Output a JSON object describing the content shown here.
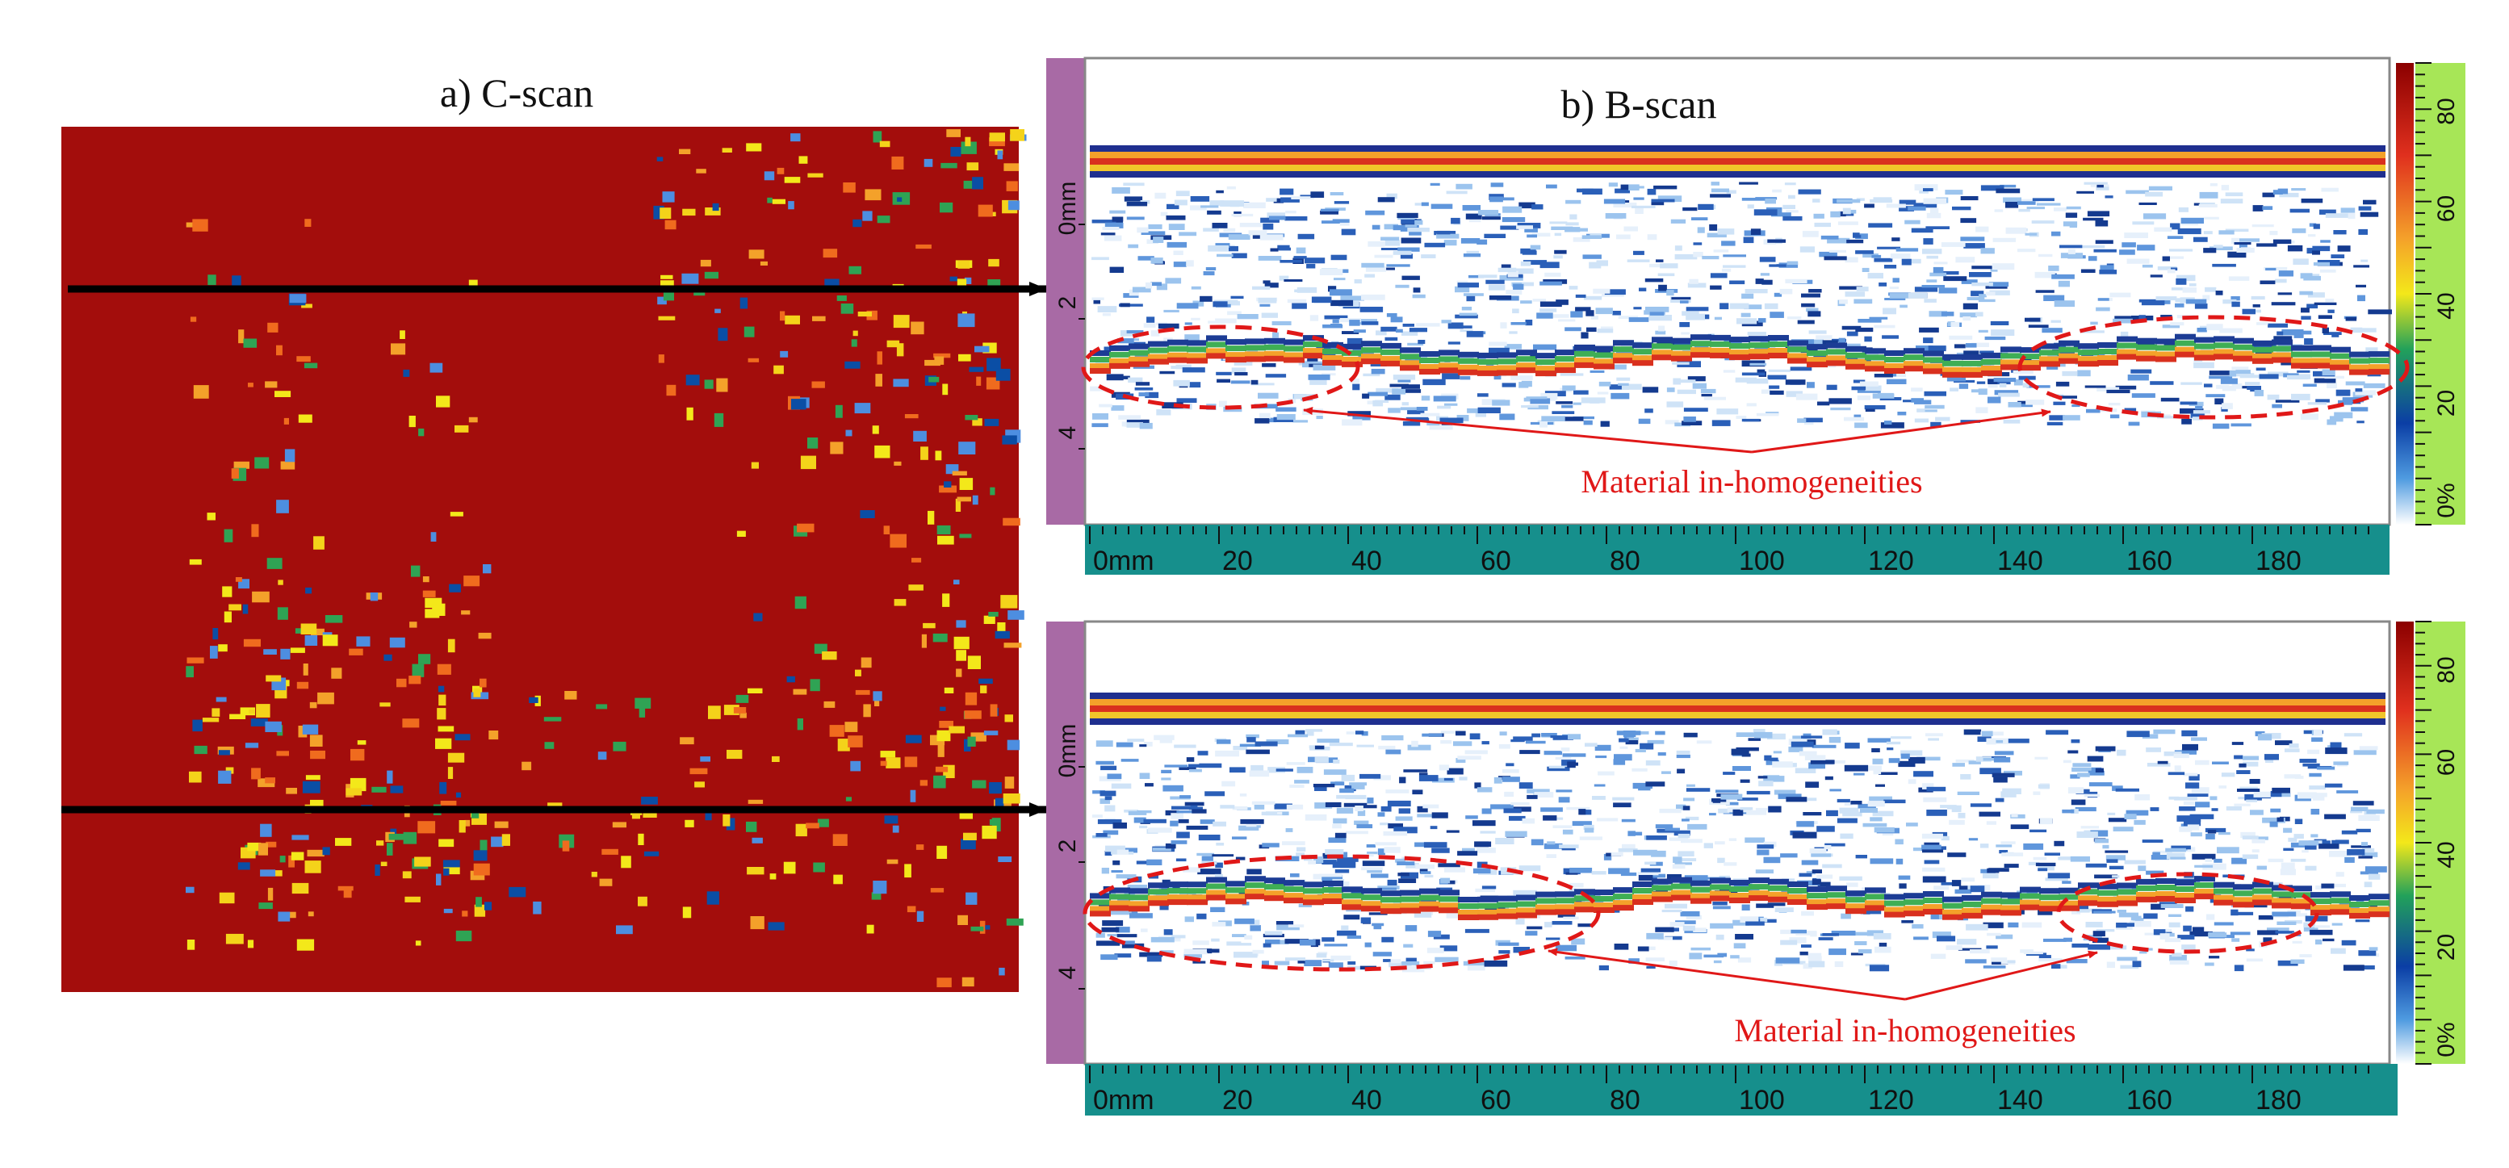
{
  "figure": {
    "panel_a": {
      "caption": "a) C-scan"
    },
    "panel_b": {
      "caption": "b) B-scan",
      "annotation": "Material in-homogeneities",
      "x_axis_ticks": [
        "0mm",
        "20",
        "40",
        "60",
        "80",
        "100",
        "120",
        "140",
        "160",
        "180"
      ],
      "depth_axis_ticks": [
        "0mm",
        "2",
        "4"
      ],
      "color_scale_ticks": [
        "80",
        "60",
        "40",
        "20",
        "0%"
      ]
    }
  },
  "colors": {
    "cscan_background": "#a30d0c",
    "annotation": "#e01818",
    "axis_bar": "#168f8c",
    "depth_bar": "#a86aa5",
    "scale_bar": "#a7e657",
    "arrow": "#000000"
  }
}
